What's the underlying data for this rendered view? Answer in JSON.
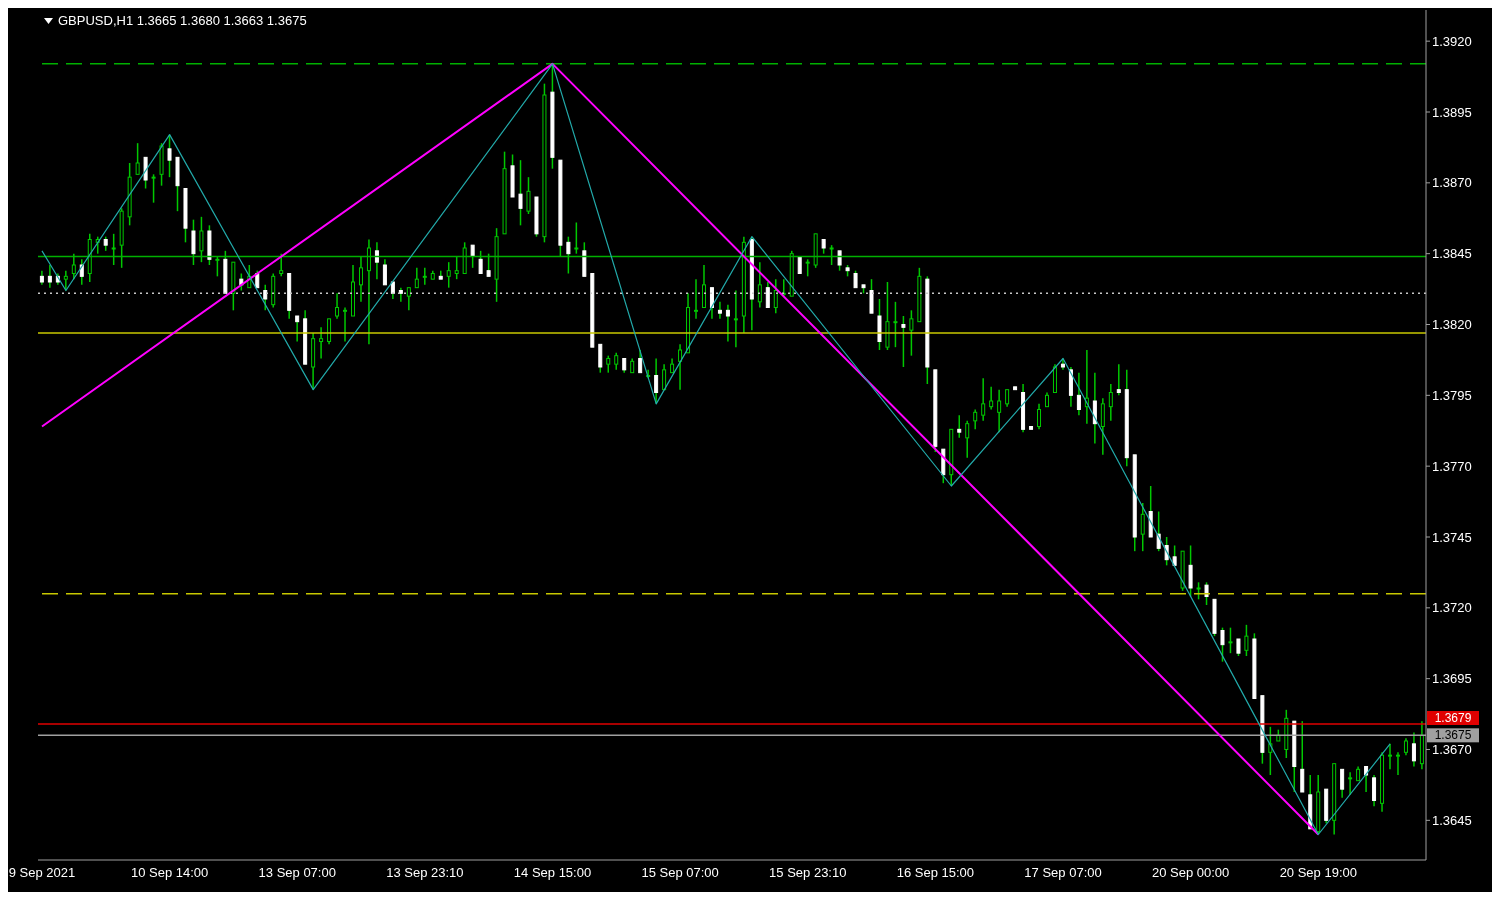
{
  "chart_data": {
    "type": "candlestick",
    "title": "GBPUSD,H1 1.3665 1.3680 1.3663 1.3675",
    "color": "#00c800",
    "categories": [
      "9 Sep 2021",
      null,
      null,
      null,
      null,
      null,
      null,
      null,
      null,
      null,
      null,
      null,
      null,
      null,
      null,
      null,
      "10 Sep 14:00",
      null,
      null,
      null,
      null,
      null,
      null,
      null,
      null,
      null,
      null,
      null,
      null,
      null,
      null,
      null,
      "13 Sep 07:00",
      null,
      null,
      null,
      null,
      null,
      null,
      null,
      null,
      null,
      null,
      null,
      null,
      null,
      null,
      null,
      "13 Sep 23:10",
      null,
      null,
      null,
      null,
      null,
      null,
      null,
      null,
      null,
      null,
      null,
      null,
      null,
      null,
      null,
      "14 Sep 15:00",
      null,
      null,
      null,
      null,
      null,
      null,
      null,
      null,
      null,
      null,
      null,
      null,
      null,
      null,
      null,
      "15 Sep 07:00",
      null,
      null,
      null,
      null,
      null,
      null,
      null,
      null,
      null,
      null,
      null,
      null,
      null,
      null,
      null,
      "15 Sep 23:10",
      null,
      null,
      null,
      null,
      null,
      null,
      null,
      null,
      null,
      null,
      null,
      null,
      null,
      null,
      null,
      "16 Sep 15:00",
      null,
      null,
      null,
      null,
      null,
      null,
      null,
      null,
      null,
      null,
      null,
      null,
      null,
      null,
      null,
      "17 Sep 07:00",
      null,
      null,
      null,
      null,
      null,
      null,
      null,
      null,
      null,
      null,
      null,
      null,
      null,
      null,
      null,
      "20 Sep 00:00",
      null,
      null,
      null,
      null,
      null,
      null,
      null,
      null,
      null,
      null,
      null,
      null,
      null,
      null,
      null,
      "20 Sep 19:00",
      null,
      null,
      null,
      null,
      null,
      null,
      null,
      null,
      null,
      null,
      null,
      null,
      null
    ],
    "ohlc": [
      [
        1.3837,
        1.3839,
        1.3834,
        1.3835
      ],
      [
        1.3837,
        1.3841,
        1.3833,
        1.3835
      ],
      [
        1.3837,
        1.3838,
        1.3834,
        1.3835
      ],
      [
        1.3836,
        1.3839,
        1.3832,
        1.3837
      ],
      [
        1.3838,
        1.3845,
        1.3836,
        1.3841
      ],
      [
        1.3841,
        1.3843,
        1.3834,
        1.3837
      ],
      [
        1.3838,
        1.3852,
        1.3835,
        1.385
      ],
      [
        1.3849,
        1.3851,
        1.3845,
        1.385
      ],
      [
        1.385,
        1.3851,
        1.3846,
        1.3848
      ],
      [
        1.3847,
        1.3852,
        1.3841,
        1.3847
      ],
      [
        1.3848,
        1.3861,
        1.384,
        1.386
      ],
      [
        1.3858,
        1.3877,
        1.3855,
        1.3872
      ],
      [
        1.3873,
        1.3884,
        1.3873,
        1.3877
      ],
      [
        1.3879,
        1.3879,
        1.3868,
        1.3871
      ],
      [
        1.3872,
        1.3873,
        1.3863,
        1.3872
      ],
      [
        1.3873,
        1.3884,
        1.3869,
        1.3883
      ],
      [
        1.3882,
        1.3887,
        1.3872,
        1.3878
      ],
      [
        1.3879,
        1.3879,
        1.386,
        1.3869
      ],
      [
        1.3868,
        1.3868,
        1.3849,
        1.3854
      ],
      [
        1.3853,
        1.3857,
        1.3841,
        1.3845
      ],
      [
        1.3846,
        1.3858,
        1.3842,
        1.3853
      ],
      [
        1.3853,
        1.3855,
        1.3841,
        1.3843
      ],
      [
        1.3843,
        1.3844,
        1.3837,
        1.3843
      ],
      [
        1.3843,
        1.3846,
        1.3831,
        1.3831
      ],
      [
        1.3831,
        1.3842,
        1.3825,
        1.3842
      ],
      [
        1.3836,
        1.3838,
        1.3832,
        1.3834
      ],
      [
        1.3833,
        1.3841,
        1.3833,
        1.3837
      ],
      [
        1.3838,
        1.3839,
        1.3833,
        1.3833
      ],
      [
        1.3832,
        1.3834,
        1.3825,
        1.3829
      ],
      [
        1.3827,
        1.3838,
        1.3826,
        1.3837
      ],
      [
        1.3838,
        1.3845,
        1.3837,
        1.3839
      ],
      [
        1.3838,
        1.3838,
        1.3822,
        1.3825
      ],
      [
        1.3823,
        1.3823,
        1.3814,
        1.3821
      ],
      [
        1.3822,
        1.3825,
        1.3806,
        1.3806
      ],
      [
        1.3805,
        1.3817,
        1.3797,
        1.3815
      ],
      [
        1.3814,
        1.3819,
        1.3808,
        1.3815
      ],
      [
        1.3814,
        1.3822,
        1.3813,
        1.3822
      ],
      [
        1.3823,
        1.3831,
        1.3822,
        1.3826
      ],
      [
        1.3825,
        1.3826,
        1.3814,
        1.3825
      ],
      [
        1.3823,
        1.3841,
        1.3823,
        1.3835
      ],
      [
        1.3834,
        1.3844,
        1.3828,
        1.384
      ],
      [
        1.3839,
        1.385,
        1.3813,
        1.3847
      ],
      [
        1.3846,
        1.3849,
        1.3836,
        1.3842
      ],
      [
        1.3841,
        1.3843,
        1.3834,
        1.3834
      ],
      [
        1.3835,
        1.3835,
        1.3829,
        1.3831
      ],
      [
        1.3832,
        1.3833,
        1.3828,
        1.3831
      ],
      [
        1.383,
        1.3833,
        1.3825,
        1.3833
      ],
      [
        1.3833,
        1.384,
        1.3833,
        1.3836
      ],
      [
        1.3837,
        1.384,
        1.3834,
        1.3837
      ],
      [
        1.3836,
        1.3839,
        1.3836,
        1.3838
      ],
      [
        1.3837,
        1.3839,
        1.3836,
        1.3836
      ],
      [
        1.3837,
        1.3842,
        1.3833,
        1.3839
      ],
      [
        1.3838,
        1.3844,
        1.3836,
        1.3839
      ],
      [
        1.3838,
        1.3849,
        1.3838,
        1.3847
      ],
      [
        1.3848,
        1.3848,
        1.384,
        1.3844
      ],
      [
        1.3843,
        1.3846,
        1.3838,
        1.3838
      ],
      [
        1.3839,
        1.3845,
        1.3837,
        1.3837
      ],
      [
        1.3836,
        1.3854,
        1.3828,
        1.3851
      ],
      [
        1.3852,
        1.3881,
        1.3852,
        1.3875
      ],
      [
        1.3876,
        1.388,
        1.3865,
        1.3865
      ],
      [
        1.3866,
        1.3878,
        1.3855,
        1.3861
      ],
      [
        1.386,
        1.3872,
        1.3859,
        1.3867
      ],
      [
        1.3865,
        1.3865,
        1.3851,
        1.3852
      ],
      [
        1.3851,
        1.3905,
        1.3849,
        1.3901
      ],
      [
        1.3902,
        1.3912,
        1.3875,
        1.3879
      ],
      [
        1.3878,
        1.3878,
        1.3844,
        1.3848
      ],
      [
        1.3849,
        1.3851,
        1.3838,
        1.3845
      ],
      [
        1.3847,
        1.3856,
        1.3845,
        1.3847
      ],
      [
        1.3846,
        1.3849,
        1.3837,
        1.3837
      ],
      [
        1.3838,
        1.3838,
        1.3812,
        1.3812
      ],
      [
        1.3813,
        1.3813,
        1.3803,
        1.3805
      ],
      [
        1.3806,
        1.3809,
        1.3803,
        1.3808
      ],
      [
        1.3806,
        1.381,
        1.3804,
        1.3809
      ],
      [
        1.3808,
        1.3808,
        1.3803,
        1.3804
      ],
      [
        1.3803,
        1.3808,
        1.3803,
        1.3807
      ],
      [
        1.3808,
        1.3811,
        1.3803,
        1.3803
      ],
      [
        1.3802,
        1.3804,
        1.3801,
        1.3802
      ],
      [
        1.3802,
        1.3808,
        1.3792,
        1.3796
      ],
      [
        1.3797,
        1.3806,
        1.3797,
        1.3804
      ],
      [
        1.3803,
        1.3808,
        1.3803,
        1.3806
      ],
      [
        1.3807,
        1.3813,
        1.3797,
        1.3811
      ],
      [
        1.381,
        1.3831,
        1.381,
        1.3826
      ],
      [
        1.3825,
        1.3836,
        1.3822,
        1.3825
      ],
      [
        1.3826,
        1.3841,
        1.3826,
        1.3834
      ],
      [
        1.3833,
        1.3833,
        1.3822,
        1.3826
      ],
      [
        1.3825,
        1.3828,
        1.3822,
        1.3824
      ],
      [
        1.3825,
        1.3827,
        1.3814,
        1.3823
      ],
      [
        1.3822,
        1.3832,
        1.3812,
        1.3822
      ],
      [
        1.3823,
        1.3851,
        1.3817,
        1.3849
      ],
      [
        1.385,
        1.3851,
        1.3818,
        1.3829
      ],
      [
        1.3828,
        1.3842,
        1.3826,
        1.3834
      ],
      [
        1.3833,
        1.3835,
        1.3826,
        1.3826
      ],
      [
        1.3826,
        1.3836,
        1.3824,
        1.3832
      ],
      [
        1.3831,
        1.3836,
        1.383,
        1.3831
      ],
      [
        1.383,
        1.3846,
        1.383,
        1.3845
      ],
      [
        1.3844,
        1.3844,
        1.3838,
        1.3838
      ],
      [
        1.3842,
        1.3843,
        1.3837,
        1.3842
      ],
      [
        1.3841,
        1.3852,
        1.384,
        1.3852
      ],
      [
        1.385,
        1.385,
        1.3845,
        1.3847
      ],
      [
        1.3847,
        1.3848,
        1.3841,
        1.3847
      ],
      [
        1.3846,
        1.3846,
        1.3839,
        1.3841
      ],
      [
        1.384,
        1.3841,
        1.3837,
        1.3839
      ],
      [
        1.3838,
        1.3839,
        1.3833,
        1.3833
      ],
      [
        1.3834,
        1.3834,
        1.3831,
        1.3833
      ],
      [
        1.3832,
        1.3836,
        1.3824,
        1.3824
      ],
      [
        1.3823,
        1.3829,
        1.3811,
        1.3814
      ],
      [
        1.3812,
        1.3835,
        1.3811,
        1.3821
      ],
      [
        1.3821,
        1.3828,
        1.3812,
        1.3821
      ],
      [
        1.382,
        1.3823,
        1.3805,
        1.3819
      ],
      [
        1.3818,
        1.3825,
        1.3809,
        1.3822
      ],
      [
        1.3821,
        1.384,
        1.3821,
        1.3837
      ],
      [
        1.3836,
        1.3837,
        1.3799,
        1.3805
      ],
      [
        1.3804,
        1.3804,
        1.3775,
        1.3777
      ],
      [
        1.3776,
        1.3776,
        1.3764,
        1.3767
      ],
      [
        1.3767,
        1.3783,
        1.3763,
        1.3783
      ],
      [
        1.3783,
        1.3788,
        1.378,
        1.3782
      ],
      [
        1.378,
        1.3786,
        1.3773,
        1.3785
      ],
      [
        1.3786,
        1.379,
        1.3783,
        1.3789
      ],
      [
        1.3788,
        1.3801,
        1.3786,
        1.3792
      ],
      [
        1.3791,
        1.3798,
        1.379,
        1.3793
      ],
      [
        1.3789,
        1.3797,
        1.3782,
        1.3793
      ],
      [
        1.3792,
        1.3797,
        1.3791,
        1.3797
      ],
      [
        1.3798,
        1.3798,
        1.3797,
        1.3797
      ],
      [
        1.3796,
        1.3799,
        1.3782,
        1.3783
      ],
      [
        1.3784,
        1.3784,
        1.3783,
        1.3783
      ],
      [
        1.3784,
        1.3792,
        1.3783,
        1.379
      ],
      [
        1.3791,
        1.3796,
        1.3791,
        1.3795
      ],
      [
        1.3796,
        1.3806,
        1.3796,
        1.3805
      ],
      [
        1.3806,
        1.3808,
        1.3804,
        1.3805
      ],
      [
        1.3804,
        1.3805,
        1.3791,
        1.3795
      ],
      [
        1.3795,
        1.3803,
        1.3788,
        1.379
      ],
      [
        1.3791,
        1.3811,
        1.3785,
        1.3794
      ],
      [
        1.3793,
        1.3803,
        1.3778,
        1.3785
      ],
      [
        1.3784,
        1.3794,
        1.3774,
        1.3792
      ],
      [
        1.3791,
        1.3799,
        1.3786,
        1.3796
      ],
      [
        1.3797,
        1.3806,
        1.3795,
        1.3796
      ],
      [
        1.3797,
        1.3804,
        1.377,
        1.3773
      ],
      [
        1.3774,
        1.3774,
        1.374,
        1.3745
      ],
      [
        1.3746,
        1.3757,
        1.374,
        1.3753
      ],
      [
        1.3754,
        1.3763,
        1.3745,
        1.3745
      ],
      [
        1.3746,
        1.3754,
        1.374,
        1.3741
      ],
      [
        1.3742,
        1.3745,
        1.3735,
        1.3737
      ],
      [
        1.3738,
        1.3742,
        1.3735,
        1.3735
      ],
      [
        1.3727,
        1.374,
        1.3726,
        1.374
      ],
      [
        1.3735,
        1.3742,
        1.3724,
        1.3727
      ],
      [
        1.3727,
        1.3729,
        1.3723,
        1.3727
      ],
      [
        1.3728,
        1.3729,
        1.3721,
        1.3724
      ],
      [
        1.3723,
        1.3723,
        1.371,
        1.3711
      ],
      [
        1.3712,
        1.3713,
        1.3701,
        1.3707
      ],
      [
        1.3708,
        1.3713,
        1.3704,
        1.3708
      ],
      [
        1.3709,
        1.3709,
        1.3703,
        1.3704
      ],
      [
        1.3705,
        1.3714,
        1.3703,
        1.371
      ],
      [
        1.3709,
        1.3711,
        1.3688,
        1.3688
      ],
      [
        1.3689,
        1.3689,
        1.3665,
        1.3669
      ],
      [
        1.3669,
        1.3678,
        1.3661,
        1.3672
      ],
      [
        1.3673,
        1.3677,
        1.3673,
        1.3675
      ],
      [
        1.367,
        1.3684,
        1.3667,
        1.3681
      ],
      [
        1.368,
        1.368,
        1.3655,
        1.3664
      ],
      [
        1.3663,
        1.368,
        1.3655,
        1.3655
      ],
      [
        1.3654,
        1.3661,
        1.3642,
        1.3642
      ],
      [
        1.3641,
        1.3661,
        1.364,
        1.3655
      ],
      [
        1.3656,
        1.3656,
        1.3644,
        1.3645
      ],
      [
        1.3645,
        1.3665,
        1.364,
        1.3665
      ],
      [
        1.3663,
        1.3663,
        1.3653,
        1.3656
      ],
      [
        1.366,
        1.3662,
        1.3654,
        1.366
      ],
      [
        1.3659,
        1.3664,
        1.3659,
        1.3663
      ],
      [
        1.3664,
        1.3664,
        1.3655,
        1.3661
      ],
      [
        1.366,
        1.3661,
        1.365,
        1.3652
      ],
      [
        1.3651,
        1.3669,
        1.3648,
        1.3668
      ],
      [
        1.3668,
        1.3672,
        1.3663,
        1.3668
      ],
      [
        1.3668,
        1.3669,
        1.3661,
        1.3668
      ],
      [
        1.3669,
        1.3674,
        1.3668,
        1.3673
      ],
      [
        1.3672,
        1.3676,
        1.3664,
        1.3666
      ],
      [
        1.3665,
        1.368,
        1.3663,
        1.3675
      ]
    ],
    "series": [
      {
        "type": "line",
        "color": "#ff00ff",
        "values": [
          1.3784,
          null,
          null,
          null,
          null,
          null,
          null,
          null,
          null,
          null,
          null,
          null,
          null,
          null,
          null,
          null,
          null,
          null,
          null,
          null,
          null,
          null,
          null,
          null,
          null,
          null,
          null,
          null,
          null,
          null,
          null,
          null,
          null,
          null,
          null,
          null,
          null,
          null,
          null,
          null,
          null,
          null,
          null,
          null,
          null,
          null,
          null,
          null,
          null,
          null,
          null,
          null,
          null,
          null,
          null,
          null,
          null,
          null,
          null,
          null,
          null,
          null,
          null,
          null,
          1.3912,
          null,
          null,
          null,
          null,
          null,
          null,
          null,
          null,
          null,
          null,
          null,
          null,
          null,
          null,
          null,
          null,
          null,
          null,
          null,
          null,
          null,
          null,
          null,
          null,
          null,
          null,
          null,
          null,
          null,
          null,
          null,
          null,
          null,
          null,
          null,
          null,
          null,
          null,
          null,
          null,
          null,
          null,
          null,
          null,
          null,
          null,
          null,
          null,
          null,
          null,
          null,
          null,
          null,
          null,
          null,
          null,
          null,
          null,
          null,
          null,
          null,
          null,
          null,
          null,
          null,
          null,
          null,
          null,
          null,
          null,
          null,
          null,
          null,
          null,
          null,
          null,
          null,
          null,
          null,
          null,
          null,
          null,
          null,
          null,
          null,
          null,
          null,
          null,
          null,
          null,
          null,
          null,
          null,
          null,
          null,
          1.364,
          null,
          null,
          null,
          null,
          null,
          null,
          null,
          null,
          null,
          null,
          null,
          null,
          null
        ]
      },
      {
        "type": "line",
        "color": "#22aaaa",
        "values": [
          1.3846,
          null,
          null,
          1.3832,
          null,
          null,
          null,
          null,
          null,
          null,
          null,
          null,
          null,
          null,
          null,
          null,
          1.3887,
          null,
          null,
          null,
          null,
          null,
          null,
          null,
          null,
          null,
          null,
          null,
          null,
          null,
          null,
          null,
          null,
          null,
          1.3797,
          null,
          null,
          null,
          null,
          null,
          null,
          null,
          null,
          null,
          null,
          null,
          null,
          null,
          null,
          null,
          null,
          null,
          null,
          null,
          null,
          null,
          null,
          null,
          null,
          null,
          null,
          null,
          null,
          null,
          1.3912,
          null,
          null,
          null,
          null,
          null,
          null,
          null,
          null,
          null,
          null,
          null,
          null,
          1.3792,
          null,
          null,
          null,
          null,
          null,
          null,
          null,
          null,
          null,
          null,
          null,
          1.3851,
          null,
          null,
          null,
          null,
          null,
          null,
          null,
          null,
          null,
          null,
          null,
          null,
          null,
          null,
          null,
          null,
          null,
          null,
          null,
          null,
          null,
          null,
          null,
          null,
          1.3763,
          null,
          null,
          null,
          null,
          null,
          null,
          null,
          null,
          null,
          null,
          null,
          null,
          null,
          1.3808,
          null,
          null,
          null,
          null,
          null,
          null,
          null,
          null,
          null,
          null,
          null,
          null,
          null,
          null,
          null,
          null,
          null,
          null,
          null,
          null,
          null,
          null,
          null,
          null,
          null,
          null,
          null,
          null,
          null,
          null,
          null,
          1.364,
          null,
          null,
          null,
          null,
          null,
          null,
          null,
          null,
          1.3672,
          null,
          null,
          null,
          null
        ]
      }
    ],
    "ylim": [
      1.3631,
      1.3931
    ],
    "yticks": [
      {
        "value": 1.3645,
        "label": "1.3645"
      },
      {
        "value": 1.367,
        "label": "1.3670"
      },
      {
        "value": 1.3695,
        "label": "1.3695"
      },
      {
        "value": 1.372,
        "label": "1.3720"
      },
      {
        "value": 1.3745,
        "label": "1.3745"
      },
      {
        "value": 1.377,
        "label": "1.3770"
      },
      {
        "value": 1.3795,
        "label": "1.3795"
      },
      {
        "value": 1.382,
        "label": "1.3820"
      },
      {
        "value": 1.3845,
        "label": "1.3845"
      },
      {
        "value": 1.387,
        "label": "1.3870"
      },
      {
        "value": 1.3895,
        "label": "1.3895"
      },
      {
        "value": 1.392,
        "label": "1.3920"
      }
    ],
    "ref_lines": [
      {
        "axis": "y",
        "value": 1.3912,
        "color": "#00b000",
        "line_style": "dashed"
      },
      {
        "axis": "y",
        "value": 1.3844,
        "color": "#00b000",
        "line_style": "solid"
      },
      {
        "axis": "y",
        "value": 1.3831,
        "color": "#c8c8c8",
        "line_style": "dotted"
      },
      {
        "axis": "y",
        "value": 1.3817,
        "color": "#c8c800",
        "line_style": "solid"
      },
      {
        "axis": "y",
        "value": 1.3725,
        "color": "#c8c800",
        "line_style": "dashed"
      },
      {
        "axis": "y",
        "value": 1.3679,
        "color": "#e00000",
        "line_style": "solid",
        "label": "1.3679"
      },
      {
        "axis": "y",
        "value": 1.3675,
        "color": "#a0a0a0",
        "line_style": "solid",
        "label": "1.3675"
      }
    ],
    "colors": [
      "#ffffff",
      "#ffffff",
      "#ffffff",
      "#00c800",
      "#00c800",
      "#ffffff",
      "#00c800",
      "#00c800",
      "#ffffff",
      "#00c800",
      "#00c800",
      "#00c800",
      "#00c800",
      "#ffffff",
      "#00c800",
      "#00c800",
      "#ffffff",
      "#ffffff",
      "#ffffff",
      "#ffffff",
      "#00c800",
      "#ffffff",
      "#00c800",
      "#ffffff",
      "#00c800",
      "#ffffff",
      "#00c800",
      "#ffffff",
      "#ffffff",
      "#00c800",
      "#00c800",
      "#ffffff",
      "#ffffff",
      "#ffffff",
      "#00c800",
      "#00c800",
      "#00c800",
      "#00c800",
      "#00c800",
      "#00c800",
      "#00c800",
      "#00c800",
      "#ffffff",
      "#ffffff",
      "#ffffff",
      "#ffffff",
      "#00c800",
      "#00c800",
      "#00c800",
      "#00c800",
      "#ffffff",
      "#00c800",
      "#00c800",
      "#00c800",
      "#ffffff",
      "#ffffff",
      "#ffffff",
      "#00c800",
      "#00c800",
      "#ffffff",
      "#ffffff",
      "#00c800",
      "#ffffff",
      "#00c800",
      "#ffffff",
      "#ffffff",
      "#ffffff",
      "#00c800",
      "#ffffff",
      "#ffffff",
      "#ffffff",
      "#00c800",
      "#00c800",
      "#ffffff",
      "#00c800",
      "#ffffff",
      "#00c800",
      "#ffffff",
      "#00c800",
      "#00c800",
      "#00c800",
      "#00c800",
      "#00c800",
      "#00c800",
      "#ffffff",
      "#ffffff",
      "#ffffff",
      "#00c800",
      "#00c800",
      "#ffffff",
      "#00c800",
      "#ffffff",
      "#00c800",
      "#00c800",
      "#00c800",
      "#ffffff",
      "#00c800",
      "#00c800",
      "#ffffff",
      "#00c800",
      "#ffffff",
      "#ffffff",
      "#ffffff",
      "#ffffff",
      "#ffffff",
      "#ffffff",
      "#00c800",
      "#00c800",
      "#ffffff",
      "#00c800",
      "#00c800",
      "#ffffff",
      "#ffffff",
      "#ffffff",
      "#00c800",
      "#ffffff",
      "#00c800",
      "#00c800",
      "#00c800",
      "#00c800",
      "#00c800",
      "#00c800",
      "#ffffff",
      "#ffffff",
      "#ffffff",
      "#00c800",
      "#00c800",
      "#00c800",
      "#ffffff",
      "#ffffff",
      "#ffffff",
      "#00c800",
      "#ffffff",
      "#00c800",
      "#00c800",
      "#ffffff",
      "#ffffff",
      "#ffffff",
      "#00c800",
      "#ffffff",
      "#ffffff",
      "#ffffff",
      "#ffffff",
      "#00c800",
      "#ffffff",
      "#00c800",
      "#ffffff",
      "#ffffff",
      "#ffffff",
      "#00c800",
      "#ffffff",
      "#00c800",
      "#ffffff",
      "#ffffff",
      "#00c800",
      "#00c800",
      "#00c800",
      "#ffffff",
      "#ffffff",
      "#ffffff",
      "#00c800",
      "#ffffff",
      "#00c800",
      "#ffffff",
      "#00c800",
      "#00c800",
      "#ffffff",
      "#ffffff",
      "#00c800",
      "#00c800",
      "#00c800",
      "#00c800",
      "#ffffff",
      "#00c800"
    ]
  }
}
